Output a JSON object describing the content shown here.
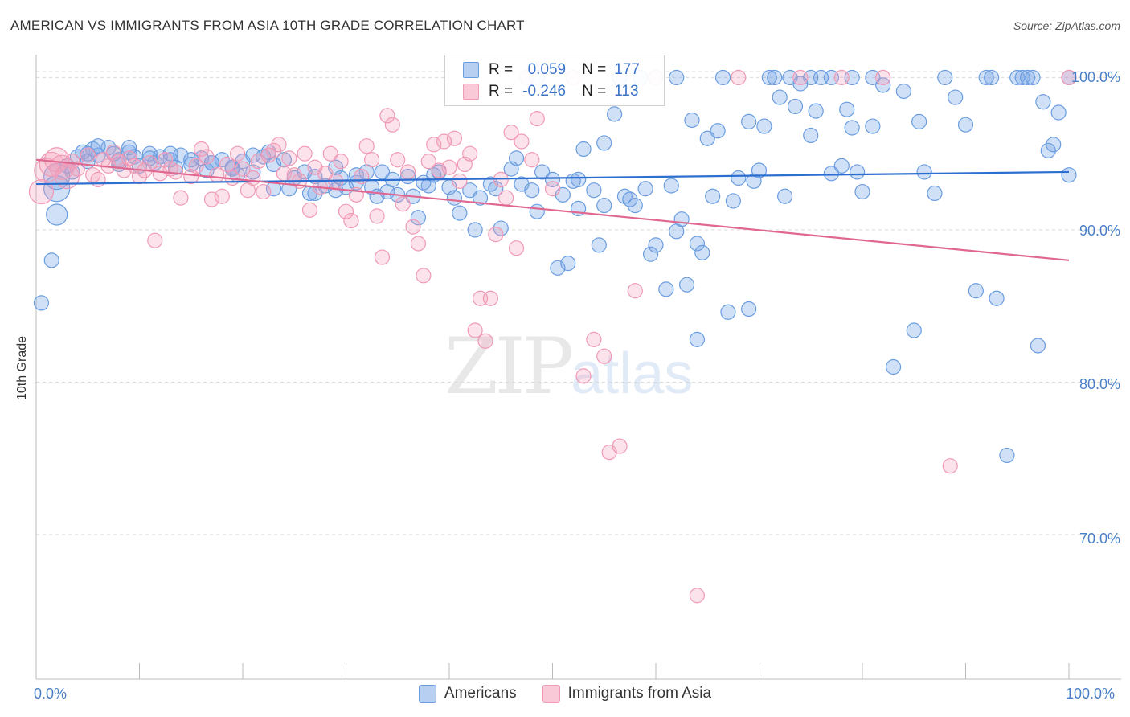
{
  "header": {
    "title": "AMERICAN VS IMMIGRANTS FROM ASIA 10TH GRADE CORRELATION CHART",
    "source": "Source: ZipAtlas.com"
  },
  "watermark": {
    "zip": "ZIP",
    "atlas": "atlas"
  },
  "legend": {
    "r_label": "R =",
    "n_label": "N =",
    "americans": {
      "r": "0.059",
      "n": "177"
    },
    "immigrants": {
      "r": "-0.246",
      "n": "113"
    }
  },
  "chart_data": {
    "type": "scatter",
    "title": "AMERICAN VS IMMIGRANTS FROM ASIA 10TH GRADE CORRELATION CHART",
    "ylabel": "10th Grade",
    "xlabel": "",
    "xlim": [
      0,
      100
    ],
    "ylim": [
      60.5,
      101.5
    ],
    "x_tick_labels": [
      "0.0%",
      "100.0%"
    ],
    "y_tick_labels": [
      "100.0%",
      "90.0%",
      "80.0%",
      "70.0%"
    ],
    "y_ticks": [
      100,
      90,
      80,
      70
    ],
    "grid": true,
    "colors": {
      "americans": "#6a9de0",
      "immigrants": "#f09ab5",
      "americans_line": "#2d6fd0",
      "immigrants_line": "#e06890"
    },
    "series": [
      {
        "name": "Americans",
        "trend": {
          "x": [
            0,
            100
          ],
          "y": [
            93.0,
            93.8
          ]
        },
        "points": [
          [
            2,
            93.5
          ],
          [
            2,
            92.7
          ],
          [
            2,
            91.0
          ],
          [
            1.5,
            88.0
          ],
          [
            0.5,
            85.2
          ],
          [
            3,
            94.2
          ],
          [
            4,
            94.8
          ],
          [
            4.5,
            95.1
          ],
          [
            5,
            94.5
          ],
          [
            5.5,
            95.3
          ],
          [
            6,
            94.9
          ],
          [
            7,
            95.4
          ],
          [
            7.5,
            95.0
          ],
          [
            8,
            94.6
          ],
          [
            9,
            95.1
          ],
          [
            9.5,
            94.8
          ],
          [
            10,
            94.2
          ],
          [
            11,
            95.0
          ],
          [
            11.5,
            94.4
          ],
          [
            12,
            94.8
          ],
          [
            13,
            94.6
          ],
          [
            13.5,
            94.1
          ],
          [
            14,
            94.9
          ],
          [
            15,
            94.3
          ],
          [
            16,
            94.7
          ],
          [
            16.5,
            93.9
          ],
          [
            17,
            94.4
          ],
          [
            18,
            94.6
          ],
          [
            19,
            94.1
          ],
          [
            19.5,
            93.6
          ],
          [
            20,
            94.5
          ],
          [
            21,
            93.8
          ],
          [
            22,
            94.8
          ],
          [
            22.5,
            95.1
          ],
          [
            23,
            94.3
          ],
          [
            24,
            94.6
          ],
          [
            24.5,
            92.7
          ],
          [
            25,
            93.4
          ],
          [
            26,
            93.8
          ],
          [
            26.5,
            92.4
          ],
          [
            27,
            93.5
          ],
          [
            28,
            92.9
          ],
          [
            29,
            92.6
          ],
          [
            29.5,
            93.4
          ],
          [
            30,
            92.8
          ],
          [
            31,
            93.1
          ],
          [
            32,
            93.8
          ],
          [
            32.5,
            92.8
          ],
          [
            33,
            92.2
          ],
          [
            34,
            92.5
          ],
          [
            34.5,
            93.3
          ],
          [
            35,
            92.3
          ],
          [
            36,
            93.5
          ],
          [
            36.5,
            92.2
          ],
          [
            37,
            90.8
          ],
          [
            38,
            92.9
          ],
          [
            38.5,
            93.6
          ],
          [
            39,
            93.8
          ],
          [
            40,
            92.8
          ],
          [
            40.5,
            92.1
          ],
          [
            41,
            91.1
          ],
          [
            42,
            92.6
          ],
          [
            42.5,
            90.0
          ],
          [
            43,
            92.1
          ],
          [
            44,
            93.0
          ],
          [
            44.5,
            92.7
          ],
          [
            45,
            90.1
          ],
          [
            46,
            94.0
          ],
          [
            46.5,
            94.7
          ],
          [
            47,
            93.0
          ],
          [
            48,
            92.6
          ],
          [
            48.5,
            91.2
          ],
          [
            49,
            93.8
          ],
          [
            50,
            93.3
          ],
          [
            50.5,
            87.5
          ],
          [
            51,
            92.3
          ],
          [
            51.5,
            87.8
          ],
          [
            52,
            93.2
          ],
          [
            52.5,
            91.4
          ],
          [
            53,
            95.3
          ],
          [
            54,
            92.6
          ],
          [
            54.5,
            89.0
          ],
          [
            55,
            91.6
          ],
          [
            56,
            97.6
          ],
          [
            57,
            92.2
          ],
          [
            57.5,
            92.0
          ],
          [
            58,
            91.6
          ],
          [
            59,
            92.7
          ],
          [
            59.5,
            88.4
          ],
          [
            60,
            89.0
          ],
          [
            61,
            86.1
          ],
          [
            61.5,
            92.9
          ],
          [
            62,
            89.9
          ],
          [
            62.5,
            90.7
          ],
          [
            63,
            86.4
          ],
          [
            63.5,
            97.2
          ],
          [
            64,
            89.1
          ],
          [
            64.5,
            88.5
          ],
          [
            65,
            96.0
          ],
          [
            65.5,
            92.2
          ],
          [
            66,
            96.5
          ],
          [
            67,
            84.6
          ],
          [
            67.5,
            91.9
          ],
          [
            68,
            93.4
          ],
          [
            69,
            97.1
          ],
          [
            69.5,
            93.2
          ],
          [
            70,
            93.9
          ],
          [
            70.5,
            96.8
          ],
          [
            71,
            100
          ],
          [
            72,
            98.7
          ],
          [
            72.5,
            92.2
          ],
          [
            73,
            100
          ],
          [
            73.5,
            98.1
          ],
          [
            74,
            99.6
          ],
          [
            75,
            96.2
          ],
          [
            75.5,
            97.8
          ],
          [
            76,
            100
          ],
          [
            77,
            93.7
          ],
          [
            78,
            94.2
          ],
          [
            78.5,
            97.9
          ],
          [
            79,
            96.7
          ],
          [
            79.5,
            93.8
          ],
          [
            80,
            92.5
          ],
          [
            81,
            100
          ],
          [
            82,
            99.5
          ],
          [
            83,
            81.0
          ],
          [
            84,
            99.1
          ],
          [
            85,
            83.4
          ],
          [
            85.5,
            97.1
          ],
          [
            86,
            93.8
          ],
          [
            87,
            92.4
          ],
          [
            88,
            100
          ],
          [
            89,
            98.7
          ],
          [
            90,
            96.9
          ],
          [
            91,
            86.0
          ],
          [
            92,
            100
          ],
          [
            92.5,
            100
          ],
          [
            93,
            85.5
          ],
          [
            94,
            75.2
          ],
          [
            95,
            100
          ],
          [
            95.5,
            100
          ],
          [
            96,
            100
          ],
          [
            97,
            82.4
          ],
          [
            98,
            95.2
          ],
          [
            98.5,
            95.6
          ],
          [
            99,
            97.7
          ],
          [
            100,
            93.6
          ],
          [
            100,
            100
          ],
          [
            96.5,
            100
          ],
          [
            97.5,
            98.4
          ],
          [
            48.5,
            100
          ],
          [
            56.5,
            100
          ],
          [
            58.5,
            100
          ],
          [
            62,
            100
          ],
          [
            64,
            82.8
          ],
          [
            66.5,
            100
          ],
          [
            69,
            84.8
          ],
          [
            71.5,
            100
          ],
          [
            75,
            100
          ],
          [
            77,
            100
          ],
          [
            79,
            100
          ],
          [
            81,
            96.8
          ],
          [
            55,
            95.7
          ],
          [
            52.5,
            93.3
          ],
          [
            37.5,
            93.1
          ],
          [
            33.5,
            93.8
          ],
          [
            31,
            93.6
          ],
          [
            29,
            94.1
          ],
          [
            27,
            92.4
          ],
          [
            23,
            92.7
          ],
          [
            21,
            94.9
          ],
          [
            19,
            94.0
          ],
          [
            17,
            94.4
          ],
          [
            15,
            94.6
          ],
          [
            13,
            95.0
          ],
          [
            11,
            94.7
          ],
          [
            9,
            95.4
          ],
          [
            8,
            94.3
          ],
          [
            6,
            95.5
          ],
          [
            5,
            95.0
          ],
          [
            3.5,
            93.8
          ]
        ],
        "sizes_note": "larger markers near x=2"
      },
      {
        "name": "Immigrants from Asia",
        "trend": {
          "x": [
            0,
            100
          ],
          "y": [
            94.6,
            88.0
          ]
        },
        "points": [
          [
            0.5,
            92.5
          ],
          [
            1,
            93.9
          ],
          [
            1.5,
            94.3
          ],
          [
            2,
            94.6
          ],
          [
            2.5,
            94.1
          ],
          [
            3,
            93.5
          ],
          [
            3.5,
            94.5
          ],
          [
            4,
            94.0
          ],
          [
            5,
            94.9
          ],
          [
            5.5,
            93.6
          ],
          [
            6,
            93.3
          ],
          [
            6.5,
            94.6
          ],
          [
            7,
            94.2
          ],
          [
            7.5,
            95.1
          ],
          [
            8,
            94.5
          ],
          [
            8.5,
            93.9
          ],
          [
            9,
            94.7
          ],
          [
            9.5,
            94.2
          ],
          [
            10,
            93.5
          ],
          [
            10.5,
            93.9
          ],
          [
            11,
            94.4
          ],
          [
            11.5,
            89.3
          ],
          [
            12,
            93.7
          ],
          [
            12.5,
            94.6
          ],
          [
            13,
            94.0
          ],
          [
            13.5,
            93.8
          ],
          [
            14,
            92.1
          ],
          [
            15,
            93.5
          ],
          [
            15.5,
            94.2
          ],
          [
            16,
            95.3
          ],
          [
            16.5,
            94.8
          ],
          [
            17,
            92.0
          ],
          [
            17.5,
            93.6
          ],
          [
            18,
            92.2
          ],
          [
            18.5,
            94.3
          ],
          [
            19,
            93.4
          ],
          [
            19.5,
            95.0
          ],
          [
            20,
            94.0
          ],
          [
            20.5,
            92.6
          ],
          [
            21,
            93.4
          ],
          [
            21.5,
            94.5
          ],
          [
            22,
            92.5
          ],
          [
            22.5,
            94.9
          ],
          [
            23,
            95.2
          ],
          [
            23.5,
            95.6
          ],
          [
            24,
            93.7
          ],
          [
            24.5,
            94.7
          ],
          [
            25,
            93.6
          ],
          [
            25.5,
            93.2
          ],
          [
            26,
            95.0
          ],
          [
            26.5,
            91.3
          ],
          [
            27,
            94.1
          ],
          [
            27.5,
            92.8
          ],
          [
            28,
            93.7
          ],
          [
            28.5,
            95.0
          ],
          [
            29,
            93.2
          ],
          [
            29.5,
            94.5
          ],
          [
            30,
            91.2
          ],
          [
            30.5,
            90.6
          ],
          [
            31,
            92.3
          ],
          [
            31.5,
            93.5
          ],
          [
            32,
            95.5
          ],
          [
            32.5,
            94.6
          ],
          [
            33,
            90.9
          ],
          [
            33.5,
            88.2
          ],
          [
            34,
            97.5
          ],
          [
            34.5,
            96.9
          ],
          [
            35,
            94.6
          ],
          [
            35.5,
            91.7
          ],
          [
            36,
            93.8
          ],
          [
            36.5,
            90.2
          ],
          [
            37,
            89.1
          ],
          [
            37.5,
            87.0
          ],
          [
            38,
            94.5
          ],
          [
            38.5,
            95.6
          ],
          [
            39,
            93.9
          ],
          [
            39.5,
            95.8
          ],
          [
            40,
            94.1
          ],
          [
            40.5,
            96.0
          ],
          [
            41,
            93.2
          ],
          [
            41.5,
            94.3
          ],
          [
            42,
            95.0
          ],
          [
            42.5,
            83.4
          ],
          [
            43,
            85.5
          ],
          [
            43.5,
            82.7
          ],
          [
            44,
            85.5
          ],
          [
            44.5,
            89.7
          ],
          [
            45,
            93.3
          ],
          [
            45.5,
            92.1
          ],
          [
            46,
            96.4
          ],
          [
            46.5,
            88.8
          ],
          [
            47,
            95.8
          ],
          [
            47.5,
            100
          ],
          [
            48,
            94.6
          ],
          [
            48.5,
            97.3
          ],
          [
            50,
            92.7
          ],
          [
            52,
            100
          ],
          [
            53,
            80.4
          ],
          [
            54,
            82.8
          ],
          [
            55,
            81.7
          ],
          [
            55.5,
            75.4
          ],
          [
            56.5,
            75.8
          ],
          [
            58,
            86.0
          ],
          [
            60,
            100
          ],
          [
            64,
            66.0
          ],
          [
            68,
            100
          ],
          [
            74,
            100
          ],
          [
            78,
            100
          ],
          [
            82,
            100
          ],
          [
            88.5,
            74.5
          ],
          [
            100,
            100
          ]
        ]
      }
    ]
  }
}
